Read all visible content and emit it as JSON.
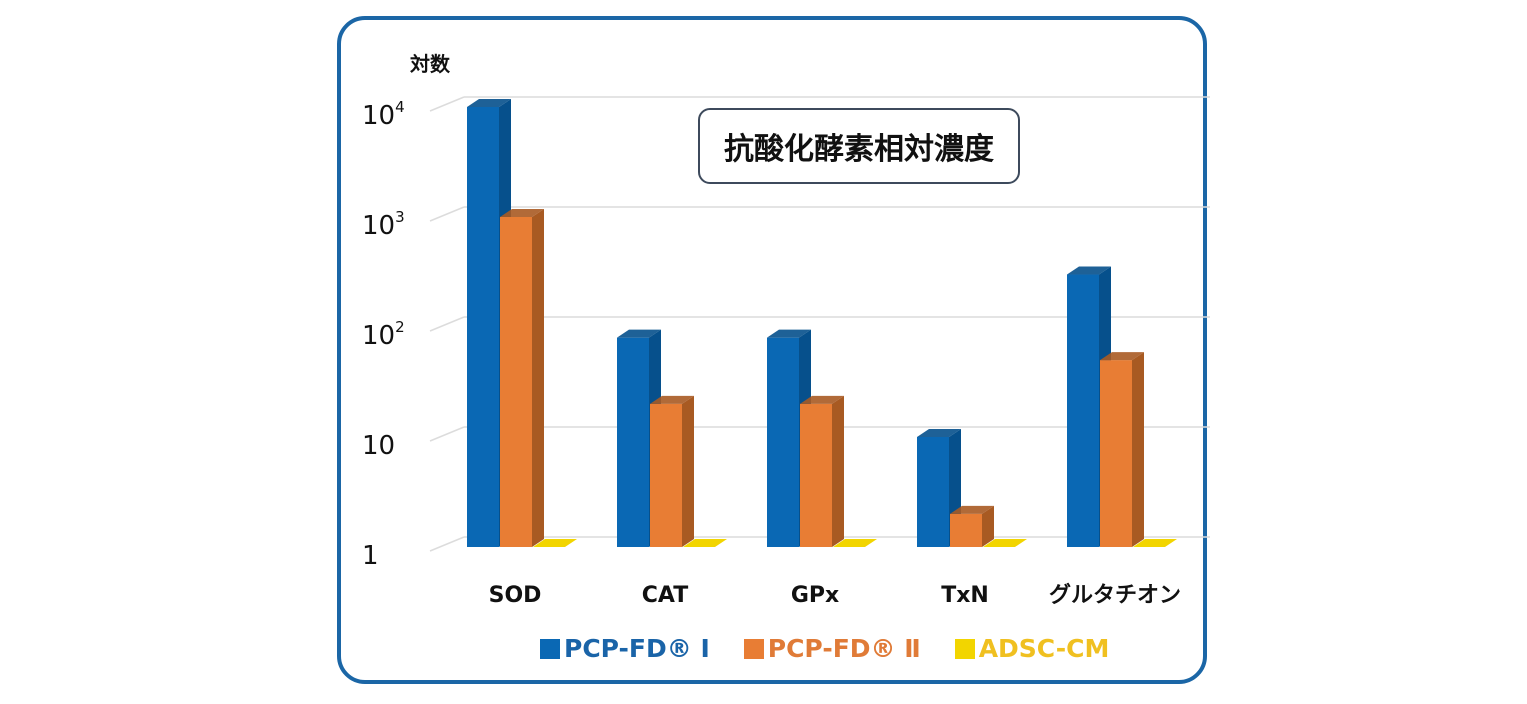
{
  "chart_data": {
    "type": "bar",
    "title": "抗酸化酵素相対濃度",
    "ylabel": "対数",
    "xlabel": "",
    "yscale": "log",
    "ylim": [
      1,
      10000
    ],
    "yticks": [
      {
        "value": 1,
        "label": "1",
        "sup": ""
      },
      {
        "value": 10,
        "label": "10",
        "sup": ""
      },
      {
        "value": 100,
        "label": "10",
        "sup": "2"
      },
      {
        "value": 1000,
        "label": "10",
        "sup": "3"
      },
      {
        "value": 10000,
        "label": "10",
        "sup": "4"
      }
    ],
    "categories": [
      "SOD",
      "CAT",
      "GPx",
      "TxN",
      "グルタチオン"
    ],
    "series": [
      {
        "name": "PCP-FD® Ⅰ",
        "color": "#0a68b4",
        "side": "#06508c",
        "values": [
          10000,
          80,
          80,
          10,
          300
        ]
      },
      {
        "name": "PCP-FD® Ⅱ",
        "color": "#e87d34",
        "side": "#a85a22",
        "values": [
          1000,
          20,
          20,
          2,
          50
        ]
      },
      {
        "name": "ADSC-CM",
        "color": "#f2d500",
        "side": "#c8c000",
        "values": [
          1,
          1,
          1,
          1,
          1
        ]
      }
    ],
    "grid": true,
    "legend": "bottom"
  }
}
